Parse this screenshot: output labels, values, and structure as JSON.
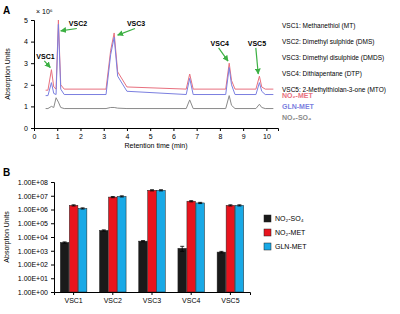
{
  "chart_data": [
    {
      "type": "line",
      "title": "A",
      "ylabel_note": "× 10⁶",
      "xlabel": "Retention time (min)",
      "ylabel": "Absorption Units",
      "x": [
        0.5,
        0.6,
        0.75,
        0.85,
        0.95,
        1.05,
        1.15,
        1.3,
        3.1,
        3.3,
        3.45,
        3.6,
        4.0,
        6.55,
        6.7,
        6.85,
        8.25,
        8.4,
        8.5,
        8.65,
        9.55,
        9.7,
        9.8,
        9.95,
        10.3
      ],
      "series": [
        {
          "name": "NO₂-MET",
          "color": "#e8707e",
          "values": [
            1.75,
            1.75,
            2.7,
            1.9,
            1.8,
            5.0,
            2.0,
            1.8,
            1.8,
            3.6,
            4.4,
            2.6,
            1.9,
            1.8,
            2.5,
            1.8,
            1.8,
            3.0,
            2.2,
            1.8,
            1.8,
            2.4,
            1.9,
            1.8,
            1.8
          ]
        },
        {
          "name": "GLN-MET",
          "color": "#7b7fe0",
          "values": [
            1.5,
            1.5,
            2.1,
            1.6,
            1.55,
            4.8,
            1.8,
            1.55,
            1.55,
            3.4,
            4.2,
            2.4,
            1.7,
            1.55,
            2.3,
            1.55,
            1.55,
            2.8,
            2.0,
            1.55,
            1.55,
            2.1,
            1.7,
            1.55,
            1.55
          ]
        },
        {
          "name": "NO₂-SO₄",
          "color": "#8a8a8a",
          "values": [
            0.9,
            0.9,
            1.0,
            0.95,
            1.4,
            1.2,
            0.95,
            0.9,
            0.9,
            0.95,
            0.95,
            0.92,
            0.9,
            0.9,
            1.3,
            0.9,
            0.9,
            1.5,
            1.05,
            0.9,
            0.9,
            1.1,
            0.95,
            0.9,
            0.9
          ]
        }
      ],
      "xlim": [
        0,
        10.5
      ],
      "xticks": [
        0,
        1,
        2,
        3,
        4,
        5,
        6,
        7,
        8,
        9,
        10
      ],
      "ylim": [
        0,
        5
      ],
      "yticks": [
        0,
        1,
        2,
        3,
        4,
        5
      ],
      "grid": false,
      "legend": "right",
      "annotations": [
        {
          "text": "VSC1",
          "x": 0.1,
          "y": 3.2,
          "arrow_x": 0.7,
          "arrow_y": 2.8
        },
        {
          "text": "VSC2",
          "x": 1.5,
          "y": 4.7,
          "arrow_x": 1.15,
          "arrow_y": 4.5
        },
        {
          "text": "VSC3",
          "x": 4.0,
          "y": 4.7,
          "arrow_x": 3.6,
          "arrow_y": 4.3
        },
        {
          "text": "VSC4",
          "x": 7.6,
          "y": 3.8,
          "arrow_x": 8.35,
          "arrow_y": 3.1
        },
        {
          "text": "VSC5",
          "x": 9.2,
          "y": 3.8,
          "arrow_x": 9.65,
          "arrow_y": 2.5
        }
      ],
      "compound_key": [
        "VSC1: Methanethiol (MT)",
        "VSC2: Dimethyl sulphide (DMS)",
        "VSC3: Dimethyl disulphide (DMDS)",
        "VSC4: Dithiapentane (DTP)",
        "VSC5: 2-Methylthiolan-3-one (MTO)"
      ]
    },
    {
      "type": "bar",
      "title": "B",
      "ylabel": "Absorption Units",
      "categories": [
        "VSC1",
        "VSC2",
        "VSC3",
        "VSC4",
        "VSC5"
      ],
      "series": [
        {
          "name": "NO₂-SO₄",
          "color": "#1a1a1a",
          "values": [
            4000,
            30000,
            5000,
            1500,
            800
          ],
          "errors": [
            400,
            3000,
            500,
            600,
            100
          ]
        },
        {
          "name": "NO₂-MET",
          "color": "#e8141e",
          "values": [
            2000000,
            8000000,
            25000000,
            4000000,
            2000000
          ],
          "errors": [
            200000,
            800000,
            2500000,
            400000,
            200000
          ]
        },
        {
          "name": "GLN-MET",
          "color": "#19a9e6",
          "values": [
            1200000,
            9000000,
            25000000,
            3000000,
            2000000
          ],
          "errors": [
            120000,
            900000,
            2500000,
            300000,
            200000
          ]
        }
      ],
      "log": "y",
      "ylim": [
        1,
        100000000
      ],
      "yticks": [
        {
          "value": 1,
          "label": "1.00E+00"
        },
        {
          "value": 10,
          "label": "1.00E+01"
        },
        {
          "value": 100,
          "label": "1.00E+02"
        },
        {
          "value": 1000,
          "label": "1.00E+03"
        },
        {
          "value": 10000,
          "label": "1.00E+04"
        },
        {
          "value": 100000,
          "label": "1.00E+05"
        },
        {
          "value": 1000000,
          "label": "1.00E+06"
        },
        {
          "value": 10000000,
          "label": "1.00E+07"
        },
        {
          "value": 100000000,
          "label": "1.00E+08"
        }
      ],
      "grid": false,
      "legend": "right"
    }
  ]
}
